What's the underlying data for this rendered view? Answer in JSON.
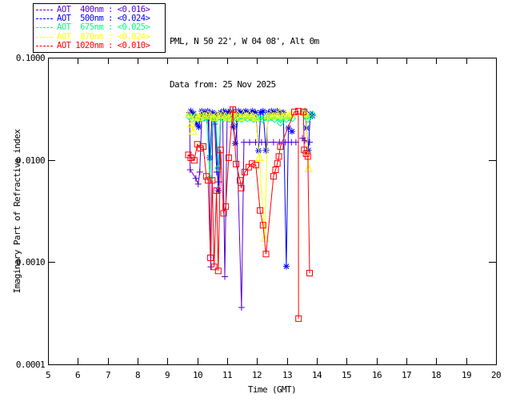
{
  "header": {
    "line1": "PML, N 50 22', W 04 08', Alt 0m",
    "line2": "Data from: 25 Nov 2025"
  },
  "legend": {
    "entries": [
      {
        "key": "400nm",
        "label": "AOT  400nm : <0.016>",
        "color": "#5500CC"
      },
      {
        "key": "500nm",
        "label": "AOT  500nm : <0.024>",
        "color": "#0000FF"
      },
      {
        "key": "675nm",
        "label": "AOT  675nm : <0.025>",
        "color": "#00FF7F"
      },
      {
        "key": "870nm",
        "label": "AOT  870nm : <0.024>",
        "color": "#FFFF00"
      },
      {
        "key": "1020nm",
        "label": "AOT 1020nm : <0.010>",
        "color": "#FF0000"
      }
    ]
  },
  "chart_data": {
    "type": "line",
    "title": "",
    "xlabel": "Time (GMT)",
    "ylabel": "Imaginary Part of Refractive index",
    "xlim": [
      5,
      20
    ],
    "ylim": [
      0.0001,
      0.1
    ],
    "y_scale": "log",
    "grid": false,
    "legend_position": "top-left",
    "x_ticks": [
      "5",
      "6",
      "7",
      "8",
      "9",
      "10",
      "11",
      "12",
      "13",
      "14",
      "15",
      "16",
      "17",
      "18",
      "19",
      "20"
    ],
    "y_ticks": [
      {
        "v": 0.1,
        "label": "0.1000"
      },
      {
        "v": 0.01,
        "label": "0.0100"
      },
      {
        "v": 0.001,
        "label": "0.0010"
      },
      {
        "v": 0.0001,
        "label": "0.0001"
      }
    ],
    "series": [
      {
        "name": "AOT 400nm",
        "mean_aot": "<0.016>",
        "color": "#5500CC",
        "marker": "plus",
        "segments": [
          [
            [
              9.74,
              0.029
            ],
            [
              9.76,
              0.008
            ],
            [
              9.95,
              0.0066
            ],
            [
              10.03,
              0.0058
            ],
            [
              10.08,
              0.0076
            ],
            [
              10.15,
              0.028
            ],
            [
              10.25,
              0.027
            ],
            [
              10.32,
              0.0245
            ],
            [
              10.38,
              0.027
            ],
            [
              10.45,
              0.0009
            ],
            [
              10.52,
              0.027
            ],
            [
              10.58,
              0.0224
            ],
            [
              10.65,
              0.0076
            ],
            [
              10.72,
              0.0061
            ],
            [
              10.78,
              0.028
            ],
            [
              10.85,
              0.027
            ],
            [
              10.92,
              0.00072
            ],
            [
              11.0,
              0.028
            ],
            [
              11.08,
              0.029
            ],
            [
              11.19,
              0.031
            ],
            [
              11.3,
              0.028
            ],
            [
              11.48,
              0.00036
            ],
            [
              11.56,
              0.0149
            ],
            [
              11.75,
              0.0149
            ],
            [
              11.95,
              0.0149
            ],
            [
              12.15,
              0.0149
            ],
            [
              12.35,
              0.0149
            ],
            [
              12.55,
              0.0149
            ],
            [
              12.75,
              0.0149
            ],
            [
              12.95,
              0.0149
            ],
            [
              13.15,
              0.0149
            ],
            [
              13.3,
              0.0149
            ]
          ],
          [
            [
              13.52,
              0.0163
            ],
            [
              13.6,
              0.0155
            ],
            [
              13.76,
              0.0149
            ]
          ]
        ]
      },
      {
        "name": "AOT 500nm",
        "mean_aot": "<0.024>",
        "color": "#0000FF",
        "marker": "asterisk",
        "segments": [
          [
            [
              9.78,
              0.03
            ],
            [
              9.88,
              0.0285
            ],
            [
              9.98,
              0.0224
            ],
            [
              10.05,
              0.021
            ],
            [
              10.15,
              0.03
            ],
            [
              10.25,
              0.029
            ],
            [
              10.35,
              0.03
            ],
            [
              10.42,
              0.0105
            ],
            [
              10.5,
              0.029
            ],
            [
              10.6,
              0.028
            ],
            [
              10.7,
              0.005
            ],
            [
              10.78,
              0.029
            ],
            [
              10.88,
              0.03
            ],
            [
              10.97,
              0.029
            ],
            [
              11.1,
              0.03
            ],
            [
              11.2,
              0.021
            ],
            [
              11.27,
              0.0145
            ],
            [
              11.38,
              0.03
            ],
            [
              11.5,
              0.029
            ],
            [
              11.62,
              0.03
            ],
            [
              11.73,
              0.029
            ],
            [
              11.85,
              0.03
            ],
            [
              11.95,
              0.029
            ],
            [
              12.05,
              0.0123
            ],
            [
              12.12,
              0.029
            ],
            [
              12.2,
              0.03
            ],
            [
              12.3,
              0.0124
            ],
            [
              12.38,
              0.029
            ],
            [
              12.48,
              0.03
            ],
            [
              12.58,
              0.029
            ],
            [
              12.68,
              0.03
            ],
            [
              12.78,
              0.029
            ],
            [
              12.88,
              0.029
            ],
            [
              12.98,
              0.00091
            ],
            [
              13.05,
              0.0205
            ],
            [
              13.17,
              0.019
            ]
          ],
          [
            [
              13.6,
              0.03
            ],
            [
              13.66,
              0.0205
            ],
            [
              13.72,
              0.0124
            ],
            [
              13.78,
              0.028
            ],
            [
              13.85,
              0.027
            ]
          ]
        ]
      },
      {
        "name": "AOT 675nm",
        "mean_aot": "<0.025>",
        "color": "#00FF7F",
        "marker": "diamond",
        "segments": [
          [
            [
              9.72,
              0.0265
            ],
            [
              9.82,
              0.025
            ],
            [
              9.92,
              0.0265
            ],
            [
              10.02,
              0.025
            ],
            [
              10.12,
              0.026
            ],
            [
              10.22,
              0.0255
            ],
            [
              10.32,
              0.026
            ],
            [
              10.42,
              0.0066
            ],
            [
              10.52,
              0.026
            ],
            [
              10.62,
              0.025
            ],
            [
              10.7,
              0.0083
            ],
            [
              10.78,
              0.026
            ],
            [
              10.88,
              0.0255
            ],
            [
              10.98,
              0.026
            ],
            [
              11.08,
              0.025
            ],
            [
              11.18,
              0.0265
            ],
            [
              11.28,
              0.024
            ],
            [
              11.38,
              0.026
            ],
            [
              11.48,
              0.025
            ],
            [
              11.58,
              0.026
            ],
            [
              11.68,
              0.0255
            ],
            [
              11.78,
              0.026
            ],
            [
              11.88,
              0.025
            ],
            [
              11.98,
              0.026
            ],
            [
              12.08,
              0.0255
            ],
            [
              12.18,
              0.025
            ],
            [
              12.28,
              0.026
            ],
            [
              12.38,
              0.0255
            ],
            [
              12.48,
              0.026
            ],
            [
              12.58,
              0.025
            ],
            [
              12.68,
              0.026
            ],
            [
              12.78,
              0.023
            ],
            [
              12.88,
              0.026
            ],
            [
              12.98,
              0.025
            ],
            [
              13.08,
              0.026
            ],
            [
              13.18,
              0.0255
            ]
          ],
          [
            [
              13.58,
              0.028
            ],
            [
              13.64,
              0.0265
            ],
            [
              13.7,
              0.025
            ],
            [
              13.78,
              0.027
            ],
            [
              13.85,
              0.028
            ]
          ]
        ]
      },
      {
        "name": "AOT 870nm",
        "mean_aot": "<0.024>",
        "color": "#FFFF00",
        "marker": "triangle",
        "segments": [
          [
            [
              9.72,
              0.028
            ],
            [
              9.8,
              0.0224
            ],
            [
              9.86,
              0.019
            ],
            [
              9.95,
              0.027
            ],
            [
              10.05,
              0.026
            ],
            [
              10.15,
              0.028
            ],
            [
              10.25,
              0.027
            ],
            [
              10.35,
              0.028
            ],
            [
              10.45,
              0.027
            ],
            [
              10.55,
              0.026
            ],
            [
              10.65,
              0.028
            ],
            [
              10.75,
              0.027
            ],
            [
              10.85,
              0.028
            ],
            [
              10.95,
              0.027
            ],
            [
              11.05,
              0.026
            ],
            [
              11.15,
              0.029
            ],
            [
              11.25,
              0.027
            ],
            [
              11.35,
              0.028
            ],
            [
              11.45,
              0.026
            ],
            [
              11.55,
              0.028
            ],
            [
              11.65,
              0.027
            ],
            [
              11.75,
              0.028
            ],
            [
              11.85,
              0.027
            ],
            [
              11.95,
              0.026
            ],
            [
              12.08,
              0.0105
            ],
            [
              12.26,
              0.0017
            ],
            [
              12.36,
              0.027
            ],
            [
              12.46,
              0.028
            ],
            [
              12.56,
              0.027
            ],
            [
              12.66,
              0.028
            ],
            [
              12.76,
              0.029
            ],
            [
              12.86,
              0.027
            ],
            [
              12.96,
              0.028
            ],
            [
              13.06,
              0.027
            ],
            [
              13.16,
              0.028
            ]
          ],
          [
            [
              13.58,
              0.029
            ],
            [
              13.64,
              0.028
            ],
            [
              13.73,
              0.0082
            ]
          ]
        ]
      },
      {
        "name": "AOT 1020nm",
        "mean_aot": "<0.010>",
        "color": "#FF0000",
        "marker": "square",
        "segments": [
          [
            [
              9.7,
              0.0112
            ],
            [
              9.78,
              0.0105
            ],
            [
              9.9,
              0.0099
            ],
            [
              10.0,
              0.0142
            ],
            [
              10.1,
              0.013
            ],
            [
              10.2,
              0.0135
            ],
            [
              10.3,
              0.0069
            ],
            [
              10.36,
              0.0063
            ],
            [
              10.44,
              0.0011
            ],
            [
              10.5,
              0.0063
            ],
            [
              10.56,
              0.0009
            ],
            [
              10.64,
              0.005
            ],
            [
              10.7,
              0.00082
            ],
            [
              10.78,
              0.0125
            ],
            [
              10.88,
              0.003
            ],
            [
              10.95,
              0.0035
            ],
            [
              11.05,
              0.0105
            ],
            [
              11.19,
              0.031
            ],
            [
              11.3,
              0.0091
            ],
            [
              11.43,
              0.0063
            ],
            [
              11.47,
              0.0053
            ],
            [
              11.59,
              0.0076
            ],
            [
              11.72,
              0.0085
            ],
            [
              11.83,
              0.0092
            ],
            [
              11.96,
              0.0089
            ],
            [
              12.1,
              0.0032
            ],
            [
              12.2,
              0.0023
            ],
            [
              12.3,
              0.0012
            ],
            [
              12.55,
              0.0069
            ],
            [
              12.62,
              0.008
            ],
            [
              12.68,
              0.0092
            ],
            [
              12.73,
              0.0108
            ],
            [
              12.78,
              0.0135
            ],
            [
              13.25,
              0.0295
            ],
            [
              13.38,
              0.03
            ],
            [
              13.39,
              0.00028
            ]
          ],
          [
            [
              13.55,
              0.0295
            ],
            [
              13.58,
              0.0125
            ],
            [
              13.64,
              0.0115
            ],
            [
              13.7,
              0.0108
            ],
            [
              13.76,
              0.00078
            ]
          ]
        ]
      }
    ]
  }
}
